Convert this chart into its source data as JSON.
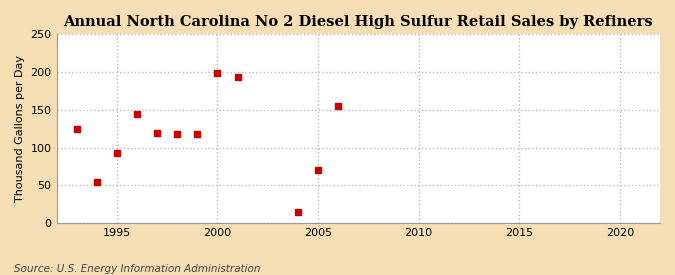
{
  "title": "Annual North Carolina No 2 Diesel High Sulfur Retail Sales by Refiners",
  "ylabel": "Thousand Gallons per Day",
  "source": "Source: U.S. Energy Information Administration",
  "figure_bg": "#f5deb3",
  "plot_bg": "#ffffff",
  "data_points": [
    [
      1993,
      125
    ],
    [
      1994,
      55
    ],
    [
      1995,
      93
    ],
    [
      1996,
      145
    ],
    [
      1997,
      120
    ],
    [
      1998,
      118
    ],
    [
      1999,
      118
    ],
    [
      2000,
      199
    ],
    [
      2001,
      194
    ],
    [
      2004,
      15
    ],
    [
      2005,
      70
    ],
    [
      2006,
      155
    ]
  ],
  "marker_color": "#cc0000",
  "marker_style": "s",
  "marker_size": 16,
  "xlim": [
    1992,
    2022
  ],
  "ylim": [
    0,
    250
  ],
  "xticks": [
    1995,
    2000,
    2005,
    2010,
    2015,
    2020
  ],
  "yticks": [
    0,
    50,
    100,
    150,
    200,
    250
  ],
  "grid_color": "#bbbbbb",
  "grid_linestyle": ":",
  "grid_linewidth": 1.0,
  "title_fontsize": 10.5,
  "label_fontsize": 8,
  "tick_fontsize": 8,
  "source_fontsize": 7.5
}
